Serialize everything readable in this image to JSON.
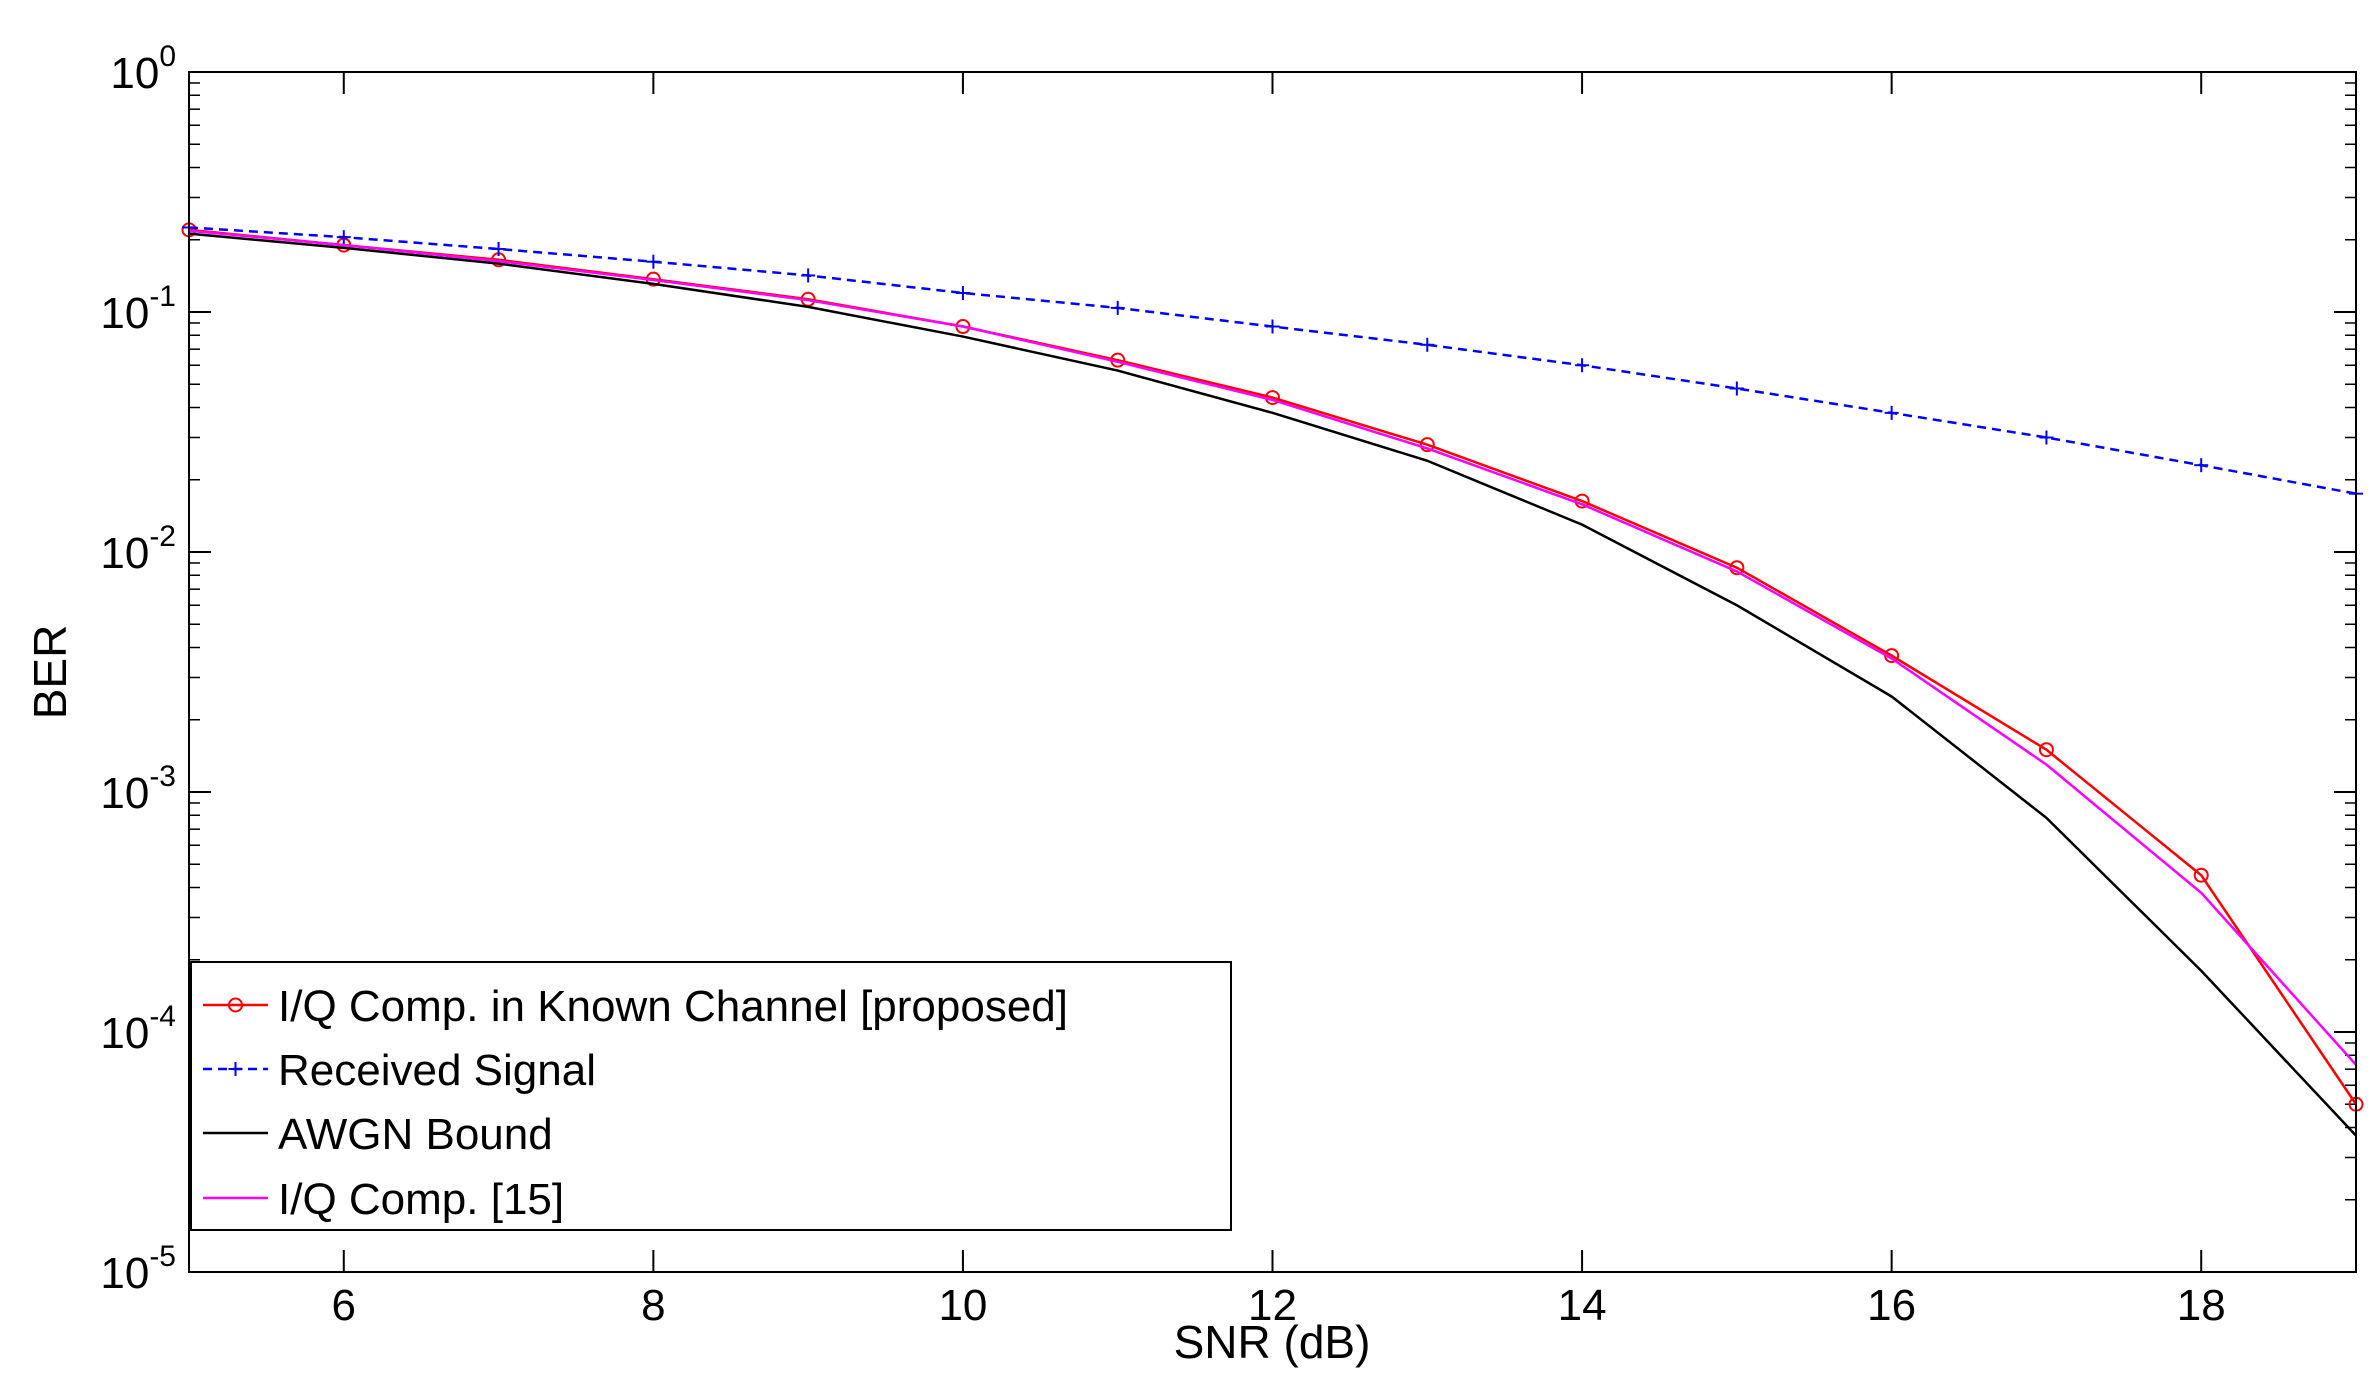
{
  "chart_data": {
    "type": "line",
    "title": "",
    "xlabel": "SNR (dB)",
    "ylabel": "BER",
    "xlim": [
      5,
      19
    ],
    "ylim": [
      1e-05,
      1
    ],
    "yscale": "log",
    "grid": false,
    "legend_position": "bottom-left",
    "x_ticks": [
      6,
      8,
      10,
      12,
      14,
      16,
      18
    ],
    "y_ticks": [
      {
        "base": "10",
        "exp": "0",
        "value": 1
      },
      {
        "base": "10",
        "exp": "-1",
        "value": 0.1
      },
      {
        "base": "10",
        "exp": "-2",
        "value": 0.01
      },
      {
        "base": "10",
        "exp": "-3",
        "value": 0.001
      },
      {
        "base": "10",
        "exp": "-4",
        "value": 0.0001
      },
      {
        "base": "10",
        "exp": "-5",
        "value": 1e-05
      }
    ],
    "series": [
      {
        "name": "I/Q Comp. in Known Channel [proposed]",
        "color": "#ff0000",
        "line": "solid",
        "marker": "circle",
        "x": [
          5,
          6,
          7,
          8,
          9,
          10,
          11,
          12,
          13,
          14,
          15,
          16,
          17,
          18,
          19
        ],
        "y": [
          0.22,
          0.19,
          0.165,
          0.137,
          0.113,
          0.087,
          0.063,
          0.044,
          0.028,
          0.0163,
          0.0086,
          0.0037,
          0.0015,
          0.00045,
          5e-05
        ]
      },
      {
        "name": "Received Signal",
        "color": "#0000ff",
        "line": "dashed",
        "marker": "plus",
        "x": [
          5,
          6,
          7,
          8,
          9,
          10,
          11,
          12,
          13,
          14,
          15,
          16,
          17,
          18,
          19
        ],
        "y": [
          0.225,
          0.205,
          0.183,
          0.162,
          0.142,
          0.12,
          0.104,
          0.087,
          0.073,
          0.06,
          0.048,
          0.038,
          0.03,
          0.023,
          0.0175
        ]
      },
      {
        "name": "AWGN Bound",
        "color": "#000000",
        "line": "solid",
        "marker": "none",
        "x": [
          5,
          6,
          7,
          8,
          9,
          10,
          11,
          12,
          13,
          14,
          15,
          16,
          17,
          18,
          19
        ],
        "y": [
          0.212,
          0.185,
          0.159,
          0.131,
          0.105,
          0.079,
          0.057,
          0.038,
          0.024,
          0.013,
          0.006,
          0.0025,
          0.00078,
          0.00018,
          3.7e-05
        ]
      },
      {
        "name": "I/Q Comp. [15]",
        "color": "#ff00ff",
        "line": "solid",
        "marker": "none",
        "x": [
          5,
          6,
          7,
          8,
          9,
          10,
          11,
          12,
          13,
          14,
          15,
          16,
          17,
          18,
          19
        ],
        "y": [
          0.218,
          0.19,
          0.163,
          0.136,
          0.112,
          0.087,
          0.062,
          0.043,
          0.027,
          0.0158,
          0.0083,
          0.0036,
          0.0013,
          0.00038,
          7.3e-05
        ]
      }
    ]
  }
}
